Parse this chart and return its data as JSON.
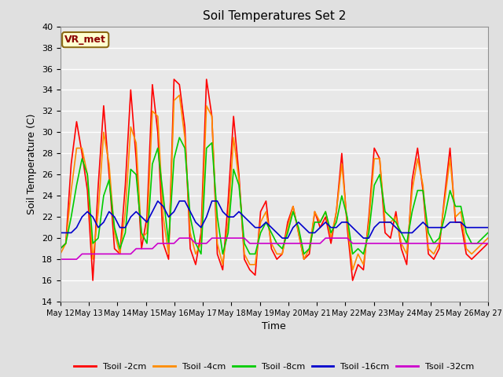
{
  "title": "Soil Temperatures Set 2",
  "xlabel": "Time",
  "ylabel": "Soil Temperature (C)",
  "ylim": [
    14,
    40
  ],
  "yticks": [
    14,
    16,
    18,
    20,
    22,
    24,
    26,
    28,
    30,
    32,
    34,
    36,
    38,
    40
  ],
  "annotation_text": "VR_met",
  "annotation_color": "#8B0000",
  "annotation_bg": "#FFFFD0",
  "bg_color": "#E8E8E8",
  "grid_color": "#FFFFFF",
  "fig_bg_color": "#E0E0E0",
  "series_labels": [
    "Tsoil -2cm",
    "Tsoil -4cm",
    "Tsoil -8cm",
    "Tsoil -16cm",
    "Tsoil -32cm"
  ],
  "series_colors": [
    "#FF0000",
    "#FF8C00",
    "#00CC00",
    "#0000CC",
    "#CC00CC"
  ],
  "series_lw": 1.2,
  "x_tick_labels": [
    "May 12",
    "May 13",
    "May 14",
    "May 15",
    "May 16",
    "May 17",
    "May 18",
    "May 19",
    "May 20",
    "May 21",
    "May 22",
    "May 23",
    "May 24",
    "May 25",
    "May 26",
    "May 27"
  ],
  "tsoil_2cm": [
    19.0,
    19.5,
    27.0,
    31.0,
    28.0,
    24.5,
    16.0,
    25.0,
    32.5,
    26.0,
    19.0,
    18.5,
    25.0,
    34.0,
    27.5,
    19.0,
    22.0,
    34.5,
    30.0,
    19.5,
    18.0,
    35.0,
    34.5,
    30.5,
    19.0,
    17.5,
    20.5,
    35.0,
    31.5,
    18.5,
    17.0,
    23.5,
    31.5,
    26.0,
    18.0,
    17.0,
    16.5,
    22.5,
    23.5,
    19.0,
    18.0,
    18.5,
    21.5,
    23.0,
    20.5,
    18.0,
    18.5,
    22.5,
    21.0,
    22.0,
    19.5,
    22.5,
    28.0,
    21.0,
    16.0,
    17.5,
    17.0,
    22.0,
    28.5,
    27.5,
    20.5,
    20.0,
    22.5,
    19.0,
    17.5,
    25.5,
    28.5,
    24.5,
    18.5,
    18.0,
    19.0,
    24.0,
    28.5,
    21.5,
    21.5,
    18.5,
    18.0,
    18.5,
    19.0,
    19.5
  ],
  "tsoil_4cm": [
    18.5,
    19.5,
    24.5,
    28.5,
    28.5,
    26.0,
    18.0,
    22.5,
    30.0,
    27.0,
    20.5,
    18.5,
    22.5,
    30.5,
    29.0,
    20.0,
    20.5,
    32.0,
    31.5,
    22.0,
    18.5,
    33.0,
    33.5,
    29.5,
    20.5,
    18.5,
    19.5,
    32.5,
    31.5,
    19.5,
    17.5,
    21.5,
    29.5,
    25.5,
    18.5,
    17.5,
    17.5,
    21.5,
    22.5,
    19.5,
    18.5,
    18.5,
    21.0,
    23.0,
    20.5,
    18.0,
    19.0,
    22.5,
    21.5,
    22.5,
    20.0,
    22.5,
    27.0,
    21.5,
    17.0,
    18.5,
    17.5,
    21.5,
    27.5,
    27.5,
    21.5,
    21.5,
    22.0,
    19.5,
    18.5,
    24.5,
    27.5,
    25.0,
    19.0,
    18.5,
    19.5,
    23.5,
    27.5,
    22.0,
    22.5,
    19.0,
    18.5,
    19.0,
    19.5,
    20.0
  ],
  "tsoil_8cm": [
    19.0,
    19.5,
    22.0,
    25.0,
    27.5,
    26.0,
    19.5,
    20.0,
    24.0,
    25.5,
    21.0,
    19.0,
    20.5,
    26.5,
    26.0,
    20.5,
    19.5,
    27.0,
    28.5,
    24.0,
    19.5,
    27.5,
    29.5,
    28.5,
    22.0,
    19.5,
    18.5,
    28.5,
    29.0,
    22.0,
    18.5,
    20.5,
    26.5,
    25.0,
    19.5,
    18.5,
    18.5,
    20.5,
    21.5,
    20.5,
    19.5,
    19.0,
    20.5,
    22.5,
    21.0,
    18.5,
    19.0,
    21.5,
    21.5,
    22.5,
    20.5,
    21.5,
    24.0,
    22.0,
    18.5,
    19.0,
    18.5,
    20.5,
    25.0,
    26.0,
    22.5,
    22.0,
    21.5,
    20.5,
    19.5,
    22.5,
    24.5,
    24.5,
    20.5,
    19.5,
    20.0,
    22.0,
    24.5,
    23.0,
    23.0,
    20.5,
    19.5,
    19.5,
    20.0,
    20.5
  ],
  "tsoil_16cm": [
    20.5,
    20.5,
    20.5,
    21.0,
    22.0,
    22.5,
    22.0,
    21.0,
    21.5,
    22.5,
    22.0,
    21.0,
    21.0,
    22.0,
    22.5,
    22.0,
    21.5,
    22.5,
    23.5,
    23.0,
    22.0,
    22.5,
    23.5,
    23.5,
    22.5,
    21.5,
    21.0,
    22.0,
    23.5,
    23.5,
    22.5,
    22.0,
    22.0,
    22.5,
    22.0,
    21.5,
    21.0,
    21.0,
    21.5,
    21.0,
    20.5,
    20.0,
    20.0,
    21.0,
    21.5,
    21.0,
    20.5,
    20.5,
    21.0,
    21.5,
    21.0,
    21.0,
    21.5,
    21.5,
    21.0,
    20.5,
    20.0,
    20.0,
    21.0,
    21.5,
    21.5,
    21.5,
    21.0,
    20.5,
    20.5,
    20.5,
    21.0,
    21.5,
    21.0,
    21.0,
    21.0,
    21.0,
    21.5,
    21.5,
    21.5,
    21.0,
    21.0,
    21.0,
    21.0,
    21.0
  ],
  "tsoil_32cm": [
    18.0,
    18.0,
    18.0,
    18.0,
    18.5,
    18.5,
    18.5,
    18.5,
    18.5,
    18.5,
    18.5,
    18.5,
    18.5,
    18.5,
    19.0,
    19.0,
    19.0,
    19.0,
    19.5,
    19.5,
    19.5,
    19.5,
    20.0,
    20.0,
    20.0,
    19.5,
    19.5,
    19.5,
    20.0,
    20.0,
    20.0,
    20.0,
    20.0,
    20.0,
    20.0,
    19.5,
    19.5,
    19.5,
    19.5,
    19.5,
    19.5,
    19.5,
    19.5,
    19.5,
    19.5,
    19.5,
    19.5,
    19.5,
    19.5,
    20.0,
    20.0,
    20.0,
    20.0,
    20.0,
    19.5,
    19.5,
    19.5,
    19.5,
    19.5,
    19.5,
    19.5,
    19.5,
    19.5,
    19.5,
    19.5,
    19.5,
    19.5,
    19.5,
    19.5,
    19.5,
    19.5,
    19.5,
    19.5,
    19.5,
    19.5,
    19.5,
    19.5,
    19.5,
    19.5,
    19.5
  ]
}
